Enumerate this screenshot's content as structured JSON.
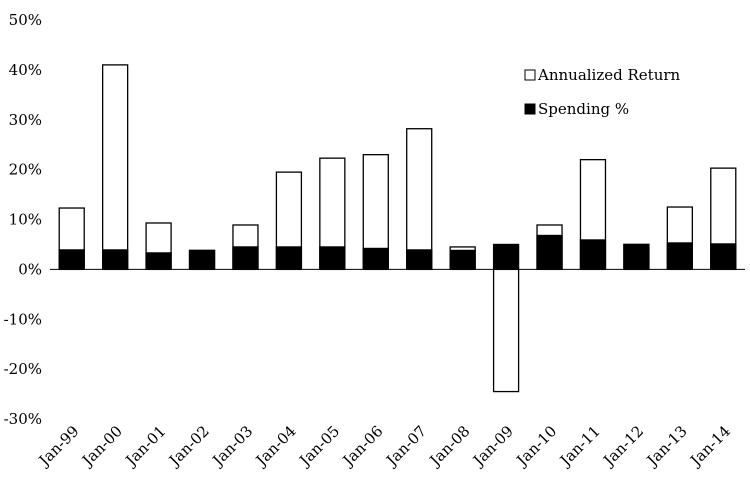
{
  "chart_data": {
    "type": "bar",
    "stacked": "overlay",
    "title": "",
    "xlabel": "",
    "ylabel": "",
    "ylim": [
      -30,
      50
    ],
    "y_ticks": [
      -30,
      -20,
      -10,
      0,
      10,
      20,
      30,
      40,
      50
    ],
    "y_tick_labels": [
      "-30%",
      "-20%",
      "-10%",
      "0%",
      "10%",
      "20%",
      "30%",
      "40%",
      "50%"
    ],
    "grid": false,
    "legend_position": "top-right",
    "categories": [
      "Jan-99",
      "Jan-00",
      "Jan-01",
      "Jan-02",
      "Jan-03",
      "Jan-04",
      "Jan-05",
      "Jan-06",
      "Jan-07",
      "Jan-08",
      "Jan-09",
      "Jan-10",
      "Jan-11",
      "Jan-12",
      "Jan-13",
      "Jan-14"
    ],
    "series": [
      {
        "name": "Annualized Return",
        "fill": "#ffffff",
        "stroke": "#000000",
        "values": [
          12.3,
          41.0,
          9.3,
          3.8,
          8.9,
          19.5,
          22.3,
          23.0,
          28.2,
          4.5,
          -24.5,
          8.9,
          22.0,
          5.0,
          12.5,
          20.3
        ]
      },
      {
        "name": "Spending %",
        "fill": "#000000",
        "stroke": "#000000",
        "values": [
          3.9,
          3.9,
          3.3,
          3.8,
          4.5,
          4.5,
          4.5,
          4.2,
          3.9,
          3.8,
          5.0,
          6.8,
          5.9,
          5.0,
          5.3,
          5.1
        ]
      }
    ]
  }
}
